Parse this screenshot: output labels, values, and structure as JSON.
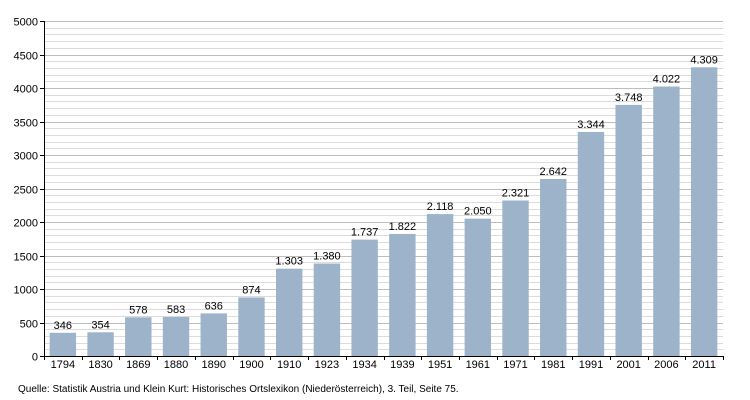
{
  "chart_data": {
    "type": "bar",
    "categories": [
      "1794",
      "1830",
      "1869",
      "1880",
      "1890",
      "1900",
      "1910",
      "1923",
      "1934",
      "1939",
      "1951",
      "1961",
      "1971",
      "1981",
      "1991",
      "2001",
      "2006",
      "2011"
    ],
    "values": [
      346,
      354,
      578,
      583,
      636,
      874,
      1303,
      1380,
      1737,
      1822,
      2118,
      2050,
      2321,
      2642,
      3344,
      3748,
      4022,
      4309
    ],
    "value_labels": [
      "346",
      "354",
      "578",
      "583",
      "636",
      "874",
      "1.303",
      "1.380",
      "1.737",
      "1.822",
      "2.118",
      "2.050",
      "2.321",
      "2.642",
      "3.344",
      "3.748",
      "4.022",
      "4.309"
    ],
    "ylim": [
      0,
      5000
    ],
    "yticks": [
      0,
      500,
      1000,
      1500,
      2000,
      2500,
      3000,
      3500,
      4000,
      4500,
      5000
    ],
    "grid": true,
    "legend": "none",
    "title": "",
    "xlabel": "",
    "ylabel": "",
    "bar_color": "#9db3c9",
    "grid_color": "#c8c8c8"
  },
  "source": "Quelle: Statistik Austria und Klein Kurt: Historisches Ortslexikon (Niederösterreich), 3. Teil, Seite 75."
}
